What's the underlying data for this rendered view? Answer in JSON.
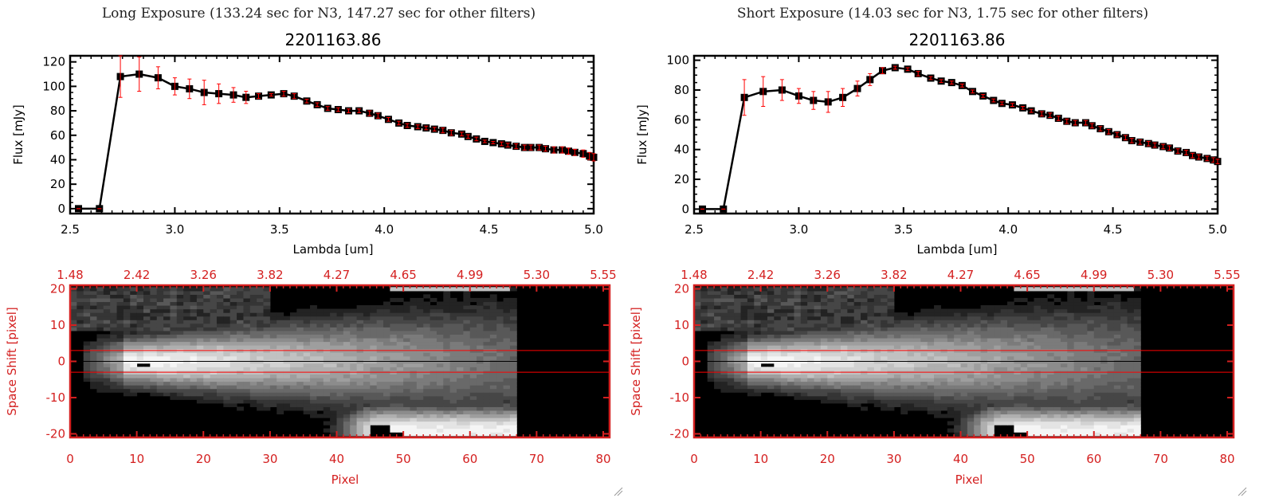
{
  "colors": {
    "axis": "#000000",
    "error_bar": "#ff0000",
    "image_axis": "#d42020",
    "band_line": "#ff0000",
    "center_line": "#000000"
  },
  "chart_data": [
    {
      "type": "line",
      "header": "Long Exposure (133.24 sec for N3, 147.27 sec for other filters)",
      "title": "2201163.86",
      "xlabel": "Lambda [um]",
      "ylabel": "Flux [mJy]",
      "xlim": [
        2.5,
        5.0
      ],
      "ylim": [
        -4,
        125
      ],
      "xticks": [
        "2.5",
        "3.0",
        "3.5",
        "4.0",
        "4.5",
        "5.0"
      ],
      "yticks": [
        "0",
        "20",
        "40",
        "60",
        "80",
        "100",
        "120"
      ],
      "marker": "square",
      "x": [
        2.54,
        2.64,
        2.74,
        2.83,
        2.92,
        3.0,
        3.07,
        3.14,
        3.21,
        3.28,
        3.34,
        3.4,
        3.46,
        3.52,
        3.57,
        3.63,
        3.68,
        3.73,
        3.78,
        3.83,
        3.88,
        3.93,
        3.97,
        4.02,
        4.07,
        4.11,
        4.16,
        4.2,
        4.24,
        4.28,
        4.32,
        4.37,
        4.4,
        4.44,
        4.48,
        4.52,
        4.56,
        4.59,
        4.63,
        4.67,
        4.7,
        4.74,
        4.77,
        4.81,
        4.85,
        4.88,
        4.91,
        4.95,
        4.98,
        5.0
      ],
      "y": [
        0,
        0,
        108,
        110,
        107,
        100,
        98,
        95,
        94,
        93,
        91,
        92,
        93,
        94,
        92,
        88,
        85,
        82,
        81,
        80,
        80,
        78,
        76,
        73,
        70,
        68,
        67,
        66,
        65,
        64,
        62,
        61,
        59,
        57,
        55,
        54,
        53,
        52,
        51,
        50,
        50,
        50,
        49,
        48,
        48,
        47,
        46,
        45,
        43,
        42
      ],
      "err": [
        0,
        0,
        17,
        14,
        9,
        7,
        8,
        10,
        8,
        6,
        5,
        2,
        1,
        2,
        2,
        1.5,
        1.5,
        1.5,
        1.5,
        1.5,
        1.5,
        2,
        2,
        1.5,
        1.5,
        1.5,
        1.5,
        1.5,
        1.5,
        2,
        2,
        1.5,
        1.5,
        1.5,
        1,
        1,
        1.5,
        1.5,
        2,
        2,
        2,
        2,
        2,
        2.5,
        2.5,
        2.5,
        2.5,
        3,
        3,
        3
      ]
    },
    {
      "type": "line",
      "header": "Short Exposure (14.03 sec for N3, 1.75 sec for other filters)",
      "title": "2201163.86",
      "xlabel": "Lambda [um]",
      "ylabel": "Flux [mJy]",
      "xlim": [
        2.5,
        5.0
      ],
      "ylim": [
        -3,
        103
      ],
      "xticks": [
        "2.5",
        "3.0",
        "3.5",
        "4.0",
        "4.5",
        "5.0"
      ],
      "yticks": [
        "0",
        "20",
        "40",
        "60",
        "80",
        "100"
      ],
      "marker": "square",
      "x": [
        2.54,
        2.64,
        2.74,
        2.83,
        2.92,
        3.0,
        3.07,
        3.14,
        3.21,
        3.28,
        3.34,
        3.4,
        3.46,
        3.52,
        3.57,
        3.63,
        3.68,
        3.73,
        3.78,
        3.83,
        3.88,
        3.93,
        3.97,
        4.02,
        4.07,
        4.11,
        4.16,
        4.2,
        4.24,
        4.28,
        4.32,
        4.37,
        4.4,
        4.44,
        4.48,
        4.52,
        4.56,
        4.59,
        4.63,
        4.67,
        4.7,
        4.74,
        4.77,
        4.81,
        4.85,
        4.88,
        4.91,
        4.95,
        4.98,
        5.0
      ],
      "y": [
        0,
        0,
        75,
        79,
        80,
        76,
        73,
        72,
        75,
        81,
        87,
        93,
        95,
        94,
        91,
        88,
        86,
        85,
        83,
        79,
        76,
        73,
        71,
        70,
        68,
        66,
        64,
        63,
        61,
        59,
        58,
        58,
        56,
        54,
        52,
        50,
        48,
        46,
        45,
        44,
        43,
        42,
        41,
        39,
        38,
        36,
        35,
        34,
        33,
        32
      ],
      "err": [
        0,
        0,
        12,
        10,
        7,
        5,
        6,
        7,
        6,
        5,
        4,
        2,
        1,
        1,
        1.5,
        1,
        1,
        1,
        1,
        1,
        1,
        1,
        1,
        1,
        1,
        1,
        1.5,
        1.5,
        1.5,
        1.5,
        1.5,
        1.5,
        1.5,
        1.5,
        1.5,
        1.5,
        1.5,
        1.5,
        1.5,
        1.5,
        1.5,
        1.5,
        1.5,
        1.5,
        1.5,
        1.5,
        1.5,
        1.5,
        1.5,
        1.5
      ]
    },
    {
      "type": "heatmap",
      "xlabel": "Pixel",
      "ylabel": "Space Shift [pixel]",
      "xlim": [
        0,
        80
      ],
      "ylim": [
        -21,
        21
      ],
      "xticks": [
        "0",
        "10",
        "20",
        "30",
        "40",
        "50",
        "60",
        "70",
        "80"
      ],
      "top_ticks": [
        "1.48",
        "2.42",
        "3.26",
        "3.82",
        "4.27",
        "4.65",
        "4.99",
        "5.30",
        "5.55"
      ],
      "yticks": [
        "-20",
        "-10",
        "0",
        "10",
        "20"
      ],
      "band_lines": [
        3,
        -3
      ],
      "center_line": 0,
      "colormap": "grayscale"
    },
    {
      "type": "heatmap",
      "xlabel": "Pixel",
      "ylabel": "Space Shift [pixel]",
      "xlim": [
        0,
        80
      ],
      "ylim": [
        -21,
        21
      ],
      "xticks": [
        "0",
        "10",
        "20",
        "30",
        "40",
        "50",
        "60",
        "70",
        "80"
      ],
      "top_ticks": [
        "1.48",
        "2.42",
        "3.26",
        "3.82",
        "4.27",
        "4.65",
        "4.99",
        "5.30",
        "5.55"
      ],
      "yticks": [
        "-20",
        "-10",
        "0",
        "10",
        "20"
      ],
      "band_lines": [
        3,
        -3
      ],
      "center_line": 0,
      "colormap": "grayscale"
    }
  ]
}
